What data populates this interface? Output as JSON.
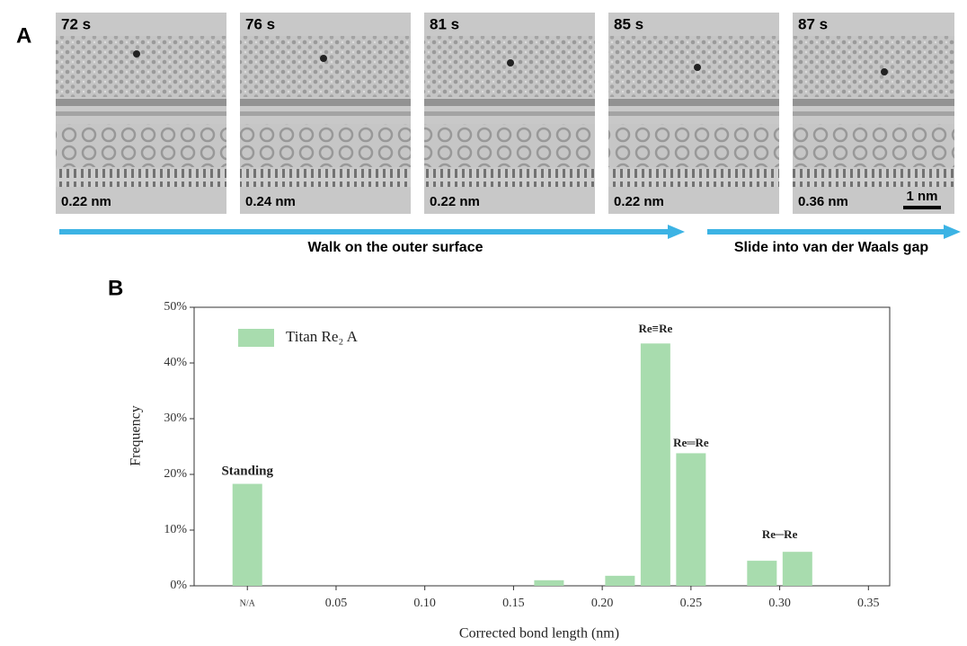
{
  "panel_a": {
    "panel_label": "A",
    "frames": [
      {
        "time": "72 s",
        "bond_length": "0.22 nm"
      },
      {
        "time": "76 s",
        "bond_length": "0.24 nm"
      },
      {
        "time": "81 s",
        "bond_length": "0.22 nm"
      },
      {
        "time": "85 s",
        "bond_length": "0.22 nm"
      },
      {
        "time": "87 s",
        "bond_length": "0.36 nm"
      }
    ],
    "scale_bar": "1 nm",
    "arrows": [
      "Walk on the outer surface",
      "Slide into van der Waals gap"
    ]
  },
  "chart_data": {
    "type": "bar",
    "panel_label": "B",
    "x_label": "Corrected bond length (nm)",
    "y_label": "Frequency",
    "x": [
      0,
      0.17,
      0.21,
      0.23,
      0.25,
      0.29,
      0.31
    ],
    "series": [
      {
        "name": "Titan Re₂ A",
        "color": "#a8dcae",
        "values": [
          18.3,
          1.0,
          1.8,
          43.5,
          23.8,
          4.5,
          6.1
        ]
      }
    ],
    "xlim": [
      -0.03,
      0.362
    ],
    "xticks": [
      {
        "value": 0,
        "label": "N/A"
      },
      0.05,
      {
        "value": 0.1,
        "label": "0.10"
      },
      0.15,
      {
        "value": 0.2,
        "label": "0.20"
      },
      0.25,
      {
        "value": 0.3,
        "label": "0.30"
      },
      0.35
    ],
    "ylim": [
      0,
      50
    ],
    "yticks": [
      {
        "value": 0,
        "label": "0%"
      },
      {
        "value": 10,
        "label": "10%"
      },
      {
        "value": 20,
        "label": "20%"
      },
      {
        "value": 30,
        "label": "30%"
      },
      {
        "value": 40,
        "label": "40%"
      },
      {
        "value": 50,
        "label": "50%"
      }
    ],
    "annotations": [
      {
        "text": "Standing",
        "x": 0,
        "y": 20.5
      },
      {
        "text": "Re≡Re",
        "x": 0.23,
        "y": 46
      },
      {
        "text": "Re═Re",
        "x": 0.25,
        "y": 25.5
      },
      {
        "text": "Re─Re",
        "x": 0.3,
        "y": 9
      }
    ],
    "legend": "top-left",
    "grid": false
  }
}
